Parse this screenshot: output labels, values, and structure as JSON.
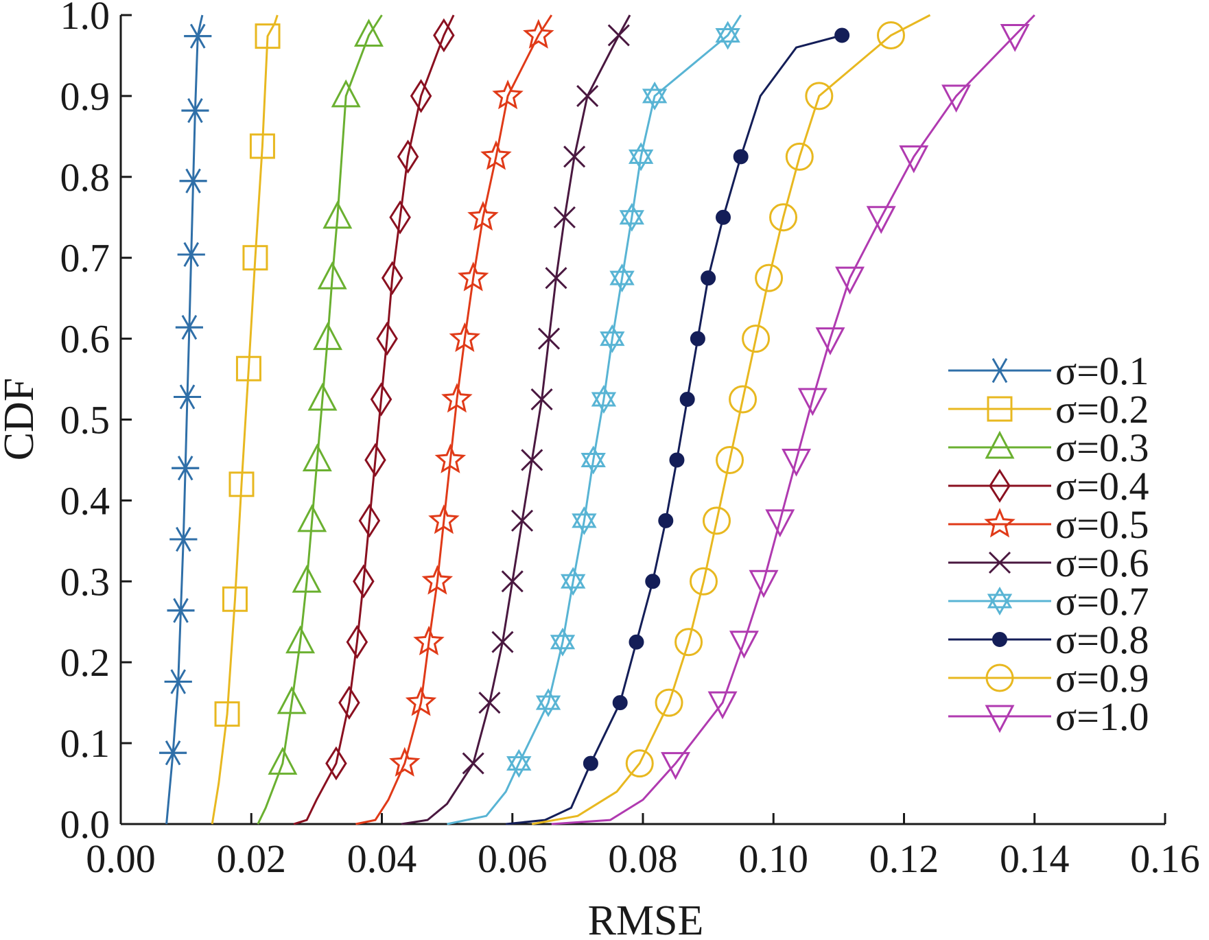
{
  "chart_data": {
    "type": "line",
    "xlabel": "RMSE",
    "ylabel": "CDF",
    "xlim": [
      0.0,
      0.16
    ],
    "ylim": [
      0.0,
      1.0
    ],
    "xticks": [
      "0.00",
      "0.02",
      "0.04",
      "0.06",
      "0.08",
      "0.10",
      "0.12",
      "0.14",
      "0.16"
    ],
    "yticks": [
      "0.0",
      "0.1",
      "0.2",
      "0.3",
      "0.4",
      "0.5",
      "0.6",
      "0.7",
      "0.8",
      "0.9",
      "1.0"
    ],
    "grid": false,
    "legend_position": "right",
    "series": [
      {
        "name": "σ=0.1",
        "color": "#2f6fa8",
        "marker": "asterisk",
        "x": [
          0.007,
          0.008,
          0.0088,
          0.0092,
          0.0096,
          0.0099,
          0.0102,
          0.0105,
          0.0108,
          0.0111,
          0.0114,
          0.0118,
          0.0122,
          0.0125
        ],
        "y": [
          0.0,
          0.088,
          0.176,
          0.264,
          0.352,
          0.44,
          0.528,
          0.614,
          0.704,
          0.795,
          0.882,
          0.974,
          0.99,
          1.0
        ],
        "marker_idx": [
          1,
          2,
          3,
          4,
          5,
          6,
          7,
          8,
          9,
          10,
          11
        ]
      },
      {
        "name": "σ=0.2",
        "color": "#e8b820",
        "marker": "square",
        "x": [
          0.014,
          0.015,
          0.0163,
          0.0175,
          0.0185,
          0.0196,
          0.0206,
          0.0217,
          0.0225,
          0.0236,
          0.024
        ],
        "y": [
          0.0,
          0.05,
          0.136,
          0.278,
          0.42,
          0.563,
          0.7,
          0.838,
          0.974,
          0.99,
          1.0
        ],
        "marker_idx": [
          2,
          3,
          4,
          5,
          6,
          7,
          8
        ]
      },
      {
        "name": "σ=0.3",
        "color": "#6ab030",
        "marker": "triangle-up",
        "x": [
          0.021,
          0.0222,
          0.0248,
          0.0262,
          0.0275,
          0.0285,
          0.0293,
          0.0301,
          0.0309,
          0.0317,
          0.0324,
          0.0332,
          0.0345,
          0.038,
          0.04
        ],
        "y": [
          0.0,
          0.02,
          0.075,
          0.15,
          0.225,
          0.3,
          0.375,
          0.45,
          0.525,
          0.6,
          0.675,
          0.75,
          0.9,
          0.975,
          1.0
        ],
        "marker_idx": [
          2,
          3,
          4,
          5,
          6,
          7,
          8,
          9,
          10,
          11,
          12,
          13
        ]
      },
      {
        "name": "σ=0.4",
        "color": "#8a1020",
        "marker": "diamond",
        "x": [
          0.0265,
          0.0285,
          0.03,
          0.033,
          0.035,
          0.0362,
          0.0372,
          0.0381,
          0.039,
          0.0399,
          0.0408,
          0.0416,
          0.0428,
          0.044,
          0.046,
          0.0495,
          0.051
        ],
        "y": [
          0.0,
          0.005,
          0.03,
          0.075,
          0.15,
          0.225,
          0.3,
          0.375,
          0.45,
          0.525,
          0.6,
          0.675,
          0.75,
          0.825,
          0.9,
          0.975,
          1.0
        ],
        "marker_idx": [
          3,
          4,
          5,
          6,
          7,
          8,
          9,
          10,
          11,
          12,
          13,
          14,
          15
        ]
      },
      {
        "name": "σ=0.5",
        "color": "#e03a18",
        "marker": "star",
        "x": [
          0.036,
          0.039,
          0.041,
          0.0435,
          0.046,
          0.0472,
          0.0485,
          0.0495,
          0.0505,
          0.0515,
          0.0527,
          0.054,
          0.0555,
          0.0575,
          0.0593,
          0.064,
          0.066
        ],
        "y": [
          0.0,
          0.005,
          0.03,
          0.075,
          0.15,
          0.225,
          0.3,
          0.375,
          0.45,
          0.525,
          0.6,
          0.675,
          0.75,
          0.825,
          0.9,
          0.975,
          1.0
        ],
        "marker_idx": [
          3,
          4,
          5,
          6,
          7,
          8,
          9,
          10,
          11,
          12,
          13,
          14,
          15
        ]
      },
      {
        "name": "σ=0.6",
        "color": "#4a1840",
        "marker": "x",
        "x": [
          0.043,
          0.047,
          0.05,
          0.054,
          0.0565,
          0.0585,
          0.06,
          0.0615,
          0.063,
          0.0645,
          0.0656,
          0.0667,
          0.068,
          0.0695,
          0.0715,
          0.0763,
          0.078
        ],
        "y": [
          0.0,
          0.005,
          0.025,
          0.075,
          0.15,
          0.225,
          0.3,
          0.375,
          0.45,
          0.525,
          0.6,
          0.675,
          0.75,
          0.825,
          0.9,
          0.975,
          1.0
        ],
        "marker_idx": [
          3,
          4,
          5,
          6,
          7,
          8,
          9,
          10,
          11,
          12,
          13,
          14,
          15
        ]
      },
      {
        "name": "σ=0.7",
        "color": "#58b4d4",
        "marker": "hexagram",
        "x": [
          0.05,
          0.056,
          0.059,
          0.061,
          0.0655,
          0.0677,
          0.0693,
          0.071,
          0.0724,
          0.074,
          0.0753,
          0.0768,
          0.0783,
          0.0797,
          0.0818,
          0.093,
          0.095
        ],
        "y": [
          0.0,
          0.01,
          0.04,
          0.075,
          0.15,
          0.225,
          0.3,
          0.375,
          0.45,
          0.525,
          0.6,
          0.675,
          0.75,
          0.825,
          0.9,
          0.975,
          1.0
        ],
        "marker_idx": [
          3,
          4,
          5,
          6,
          7,
          8,
          9,
          10,
          11,
          12,
          13,
          14,
          15
        ]
      },
      {
        "name": "σ=0.8",
        "color": "#141e58",
        "marker": "filled-circle",
        "x": [
          0.059,
          0.065,
          0.069,
          0.072,
          0.0765,
          0.079,
          0.0815,
          0.0835,
          0.0852,
          0.0868,
          0.0884,
          0.09,
          0.0923,
          0.095,
          0.098,
          0.1035,
          0.1105
        ],
        "y": [
          0.0,
          0.005,
          0.02,
          0.075,
          0.15,
          0.225,
          0.3,
          0.375,
          0.45,
          0.525,
          0.6,
          0.675,
          0.75,
          0.825,
          0.9,
          0.96,
          0.975
        ],
        "marker_idx": [
          3,
          4,
          5,
          6,
          7,
          8,
          9,
          10,
          11,
          12,
          13,
          16
        ]
      },
      {
        "name": "σ=0.9",
        "color": "#e8b820",
        "marker": "circle",
        "x": [
          0.063,
          0.07,
          0.076,
          0.0795,
          0.084,
          0.087,
          0.0893,
          0.0913,
          0.0933,
          0.0953,
          0.0973,
          0.0993,
          0.1015,
          0.104,
          0.107,
          0.118,
          0.124
        ],
        "y": [
          0.0,
          0.01,
          0.04,
          0.075,
          0.15,
          0.225,
          0.3,
          0.375,
          0.45,
          0.525,
          0.6,
          0.675,
          0.75,
          0.825,
          0.9,
          0.975,
          1.0
        ],
        "marker_idx": [
          3,
          4,
          5,
          6,
          7,
          8,
          9,
          10,
          11,
          12,
          13,
          14,
          15
        ]
      },
      {
        "name": "σ=1.0",
        "color": "#b03ab0",
        "marker": "triangle-down",
        "x": [
          0.066,
          0.075,
          0.08,
          0.085,
          0.0922,
          0.0955,
          0.0985,
          0.101,
          0.1035,
          0.106,
          0.1087,
          0.1117,
          0.1165,
          0.1215,
          0.128,
          0.137,
          0.14
        ],
        "y": [
          0.0,
          0.005,
          0.03,
          0.075,
          0.15,
          0.225,
          0.3,
          0.375,
          0.45,
          0.525,
          0.6,
          0.675,
          0.75,
          0.825,
          0.9,
          0.975,
          1.0
        ],
        "marker_idx": [
          3,
          4,
          5,
          6,
          7,
          8,
          9,
          10,
          11,
          12,
          13,
          14,
          15
        ]
      }
    ]
  }
}
